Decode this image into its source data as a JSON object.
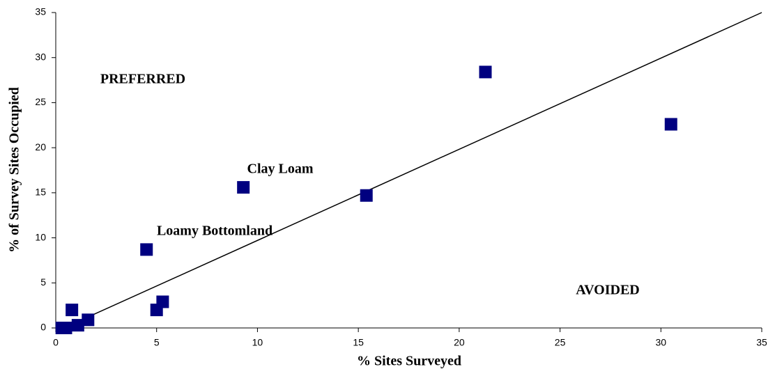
{
  "chart_data": {
    "type": "scatter",
    "xlabel": "% Sites Surveyed",
    "ylabel": "% of Survey Sites Occupied",
    "xlim": [
      0,
      35
    ],
    "ylim": [
      0,
      35
    ],
    "xticks": [
      0,
      5,
      10,
      15,
      20,
      25,
      30,
      35
    ],
    "yticks": [
      0,
      5,
      10,
      15,
      20,
      25,
      30,
      35
    ],
    "grid": false,
    "series": [
      {
        "color": "#000080",
        "x": [
          4.5,
          9.3,
          15.4,
          21.3,
          30.5,
          5.3,
          5.0,
          0.8,
          1.6,
          1.1,
          0.3,
          0.5
        ],
        "y": [
          8.7,
          15.6,
          14.7,
          28.4,
          22.6,
          2.9,
          2.0,
          2.0,
          0.9,
          0.3,
          0.0,
          0.0
        ]
      }
    ],
    "reference_line": {
      "color": "#000000",
      "x": [
        0.4,
        35
      ],
      "y": [
        0,
        35
      ]
    },
    "annotations": [
      "PREFERRED",
      "Clay Loam",
      "Loamy Bottomland",
      "AVOIDED"
    ]
  }
}
